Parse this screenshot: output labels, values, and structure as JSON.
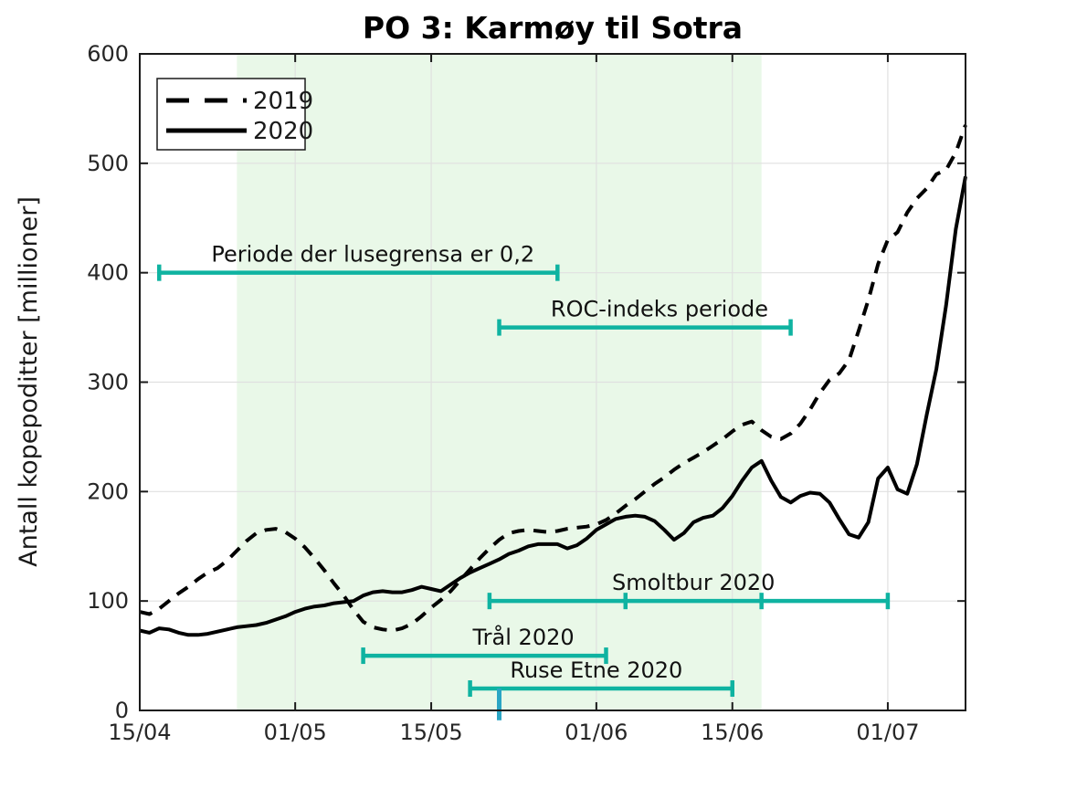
{
  "title": "PO 3: Karmøy til Sotra",
  "chart_data": {
    "type": "line",
    "title": "PO 3: Karmøy til Sotra",
    "xlabel": "",
    "ylabel": "Antall kopepoditter [millioner]",
    "grid": true,
    "x_unit": "days since 15/04",
    "xlim": [
      0,
      85
    ],
    "ylim": [
      0,
      600
    ],
    "x_ticks": [
      {
        "day": 0,
        "label": "15/04"
      },
      {
        "day": 16,
        "label": "01/05"
      },
      {
        "day": 30,
        "label": "15/05"
      },
      {
        "day": 47,
        "label": "01/06"
      },
      {
        "day": 61,
        "label": "15/06"
      },
      {
        "day": 77,
        "label": "01/07"
      }
    ],
    "y_ticks": [
      0,
      100,
      200,
      300,
      400,
      500,
      600
    ],
    "shaded_region": {
      "start_day": 10,
      "end_day": 64
    },
    "legend": {
      "position": "top-left"
    },
    "series": [
      {
        "name": "2019",
        "style": "dashed",
        "color": "#000000",
        "values": [
          90,
          88,
          93,
          100,
          107,
          113,
          120,
          126,
          130,
          137,
          146,
          155,
          162,
          165,
          166,
          163,
          157,
          149,
          139,
          128,
          116,
          105,
          92,
          81,
          76,
          74,
          73,
          75,
          79,
          86,
          94,
          101,
          109,
          119,
          129,
          139,
          148,
          156,
          162,
          164,
          165,
          164,
          163,
          164,
          166,
          167,
          168,
          170,
          174,
          180,
          187,
          193,
          200,
          207,
          213,
          220,
          226,
          231,
          236,
          242,
          248,
          255,
          261,
          264,
          256,
          250,
          248,
          253,
          262,
          275,
          290,
          302,
          308,
          320,
          347,
          375,
          408,
          430,
          437,
          455,
          468,
          477,
          490,
          494,
          510,
          535
        ]
      },
      {
        "name": "2020",
        "style": "solid",
        "color": "#000000",
        "values": [
          73,
          71,
          75,
          74,
          71,
          69,
          69,
          70,
          72,
          74,
          76,
          77,
          78,
          80,
          83,
          86,
          90,
          93,
          95,
          96,
          98,
          99,
          100,
          105,
          108,
          109,
          108,
          108,
          110,
          113,
          111,
          109,
          115,
          121,
          126,
          130,
          134,
          138,
          143,
          146,
          150,
          152,
          152,
          152,
          148,
          151,
          157,
          165,
          170,
          175,
          177,
          178,
          177,
          173,
          165,
          156,
          162,
          172,
          176,
          178,
          185,
          196,
          210,
          222,
          228,
          210,
          195,
          190,
          196,
          199,
          198,
          190,
          175,
          161,
          158,
          172,
          212,
          222,
          202,
          198,
          225,
          270,
          312,
          370,
          440,
          488
        ]
      }
    ],
    "annotations": [
      {
        "label": "Periode der lusegrensa er 0,2",
        "y": 400,
        "start_day": 2,
        "end_day": 43,
        "caps": [
          2,
          43
        ],
        "label_day": 24
      },
      {
        "label": "ROC-indeks periode",
        "y": 350,
        "start_day": 37,
        "end_day": 67,
        "caps": [
          37,
          67
        ],
        "label_day": 53.5
      },
      {
        "label": "Smoltbur 2020",
        "y": 100,
        "start_day": 36,
        "end_day": 77,
        "caps": [
          36,
          50,
          64,
          77
        ],
        "label_day": 57
      },
      {
        "label": "Trål 2020",
        "y": 50,
        "start_day": 23,
        "end_day": 48,
        "caps": [
          23,
          48
        ],
        "label_day": 39.5
      },
      {
        "label": "Ruse Etne 2020",
        "y": 20,
        "start_day": 34,
        "end_day": 61,
        "caps": [
          34,
          61
        ],
        "label_day": 47
      }
    ],
    "event_marker": {
      "day": 37,
      "y_top": 20,
      "y_bottom": -9
    },
    "colors": {
      "annotation_teal": "#0fb3a1",
      "marker_blue": "#2aa5c4",
      "band_green": "#e9f8e8",
      "grid": "#e0e0e0",
      "axis": "#1a1a1a",
      "line": "#000000"
    }
  }
}
